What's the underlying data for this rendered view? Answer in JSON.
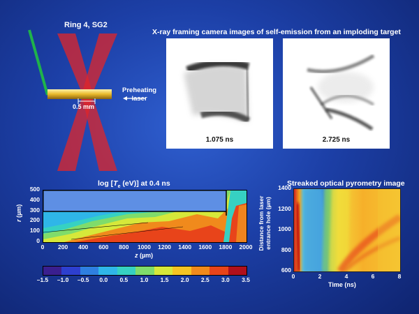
{
  "laser_diagram": {
    "title": "Ring 4, SG2",
    "dimension_label": "0.5 mm",
    "preheat_label_line1": "Preheating",
    "preheat_label_line2": "laser"
  },
  "xray": {
    "title": "X-ray framing camera images of self-emission from an imploding target",
    "frames": [
      {
        "label": "1.075 ns"
      },
      {
        "label": "2.725 ns"
      }
    ]
  },
  "te_plot": {
    "title_prefix": "log [",
    "title_var": "T",
    "title_sub": "e",
    "title_suffix": " (eV)] at 0.4 ns",
    "ylabel_var": "r",
    "ylabel_unit": " (µm)",
    "xlabel_var": "z",
    "xlabel_unit": " (µm)",
    "x_ticks": [
      "0",
      "200",
      "400",
      "600",
      "800",
      "1000",
      "1200",
      "1400",
      "1600",
      "1800",
      "2000"
    ],
    "y_ticks": [
      "0",
      "100",
      "200",
      "300",
      "400",
      "500"
    ],
    "colorbar_ticks": [
      "–1.5",
      "–1.0",
      "–0.5",
      "0.0",
      "0.5",
      "1.0",
      "1.5",
      "2.0",
      "2.5",
      "3.0",
      "3.5"
    ],
    "colorbar_colors": [
      "#3a1f8f",
      "#2d3fcf",
      "#2e7fe0",
      "#2fb6e8",
      "#36d1c2",
      "#7fdc6b",
      "#d6e83a",
      "#f5c423",
      "#f08a1c",
      "#e8441a",
      "#b0101c"
    ]
  },
  "chart_data": {
    "type": "heatmap",
    "title": "Streaked optical pyrometry image",
    "xlabel": "Time (ns)",
    "ylabel": "Distance from laser entrance hole (µm)",
    "xlim": [
      0,
      8
    ],
    "ylim": [
      600,
      1400
    ],
    "x_ticks": [
      "0",
      "2",
      "4",
      "6",
      "8"
    ],
    "y_ticks": [
      "600",
      "800",
      "1000",
      "1200",
      "1400"
    ]
  }
}
